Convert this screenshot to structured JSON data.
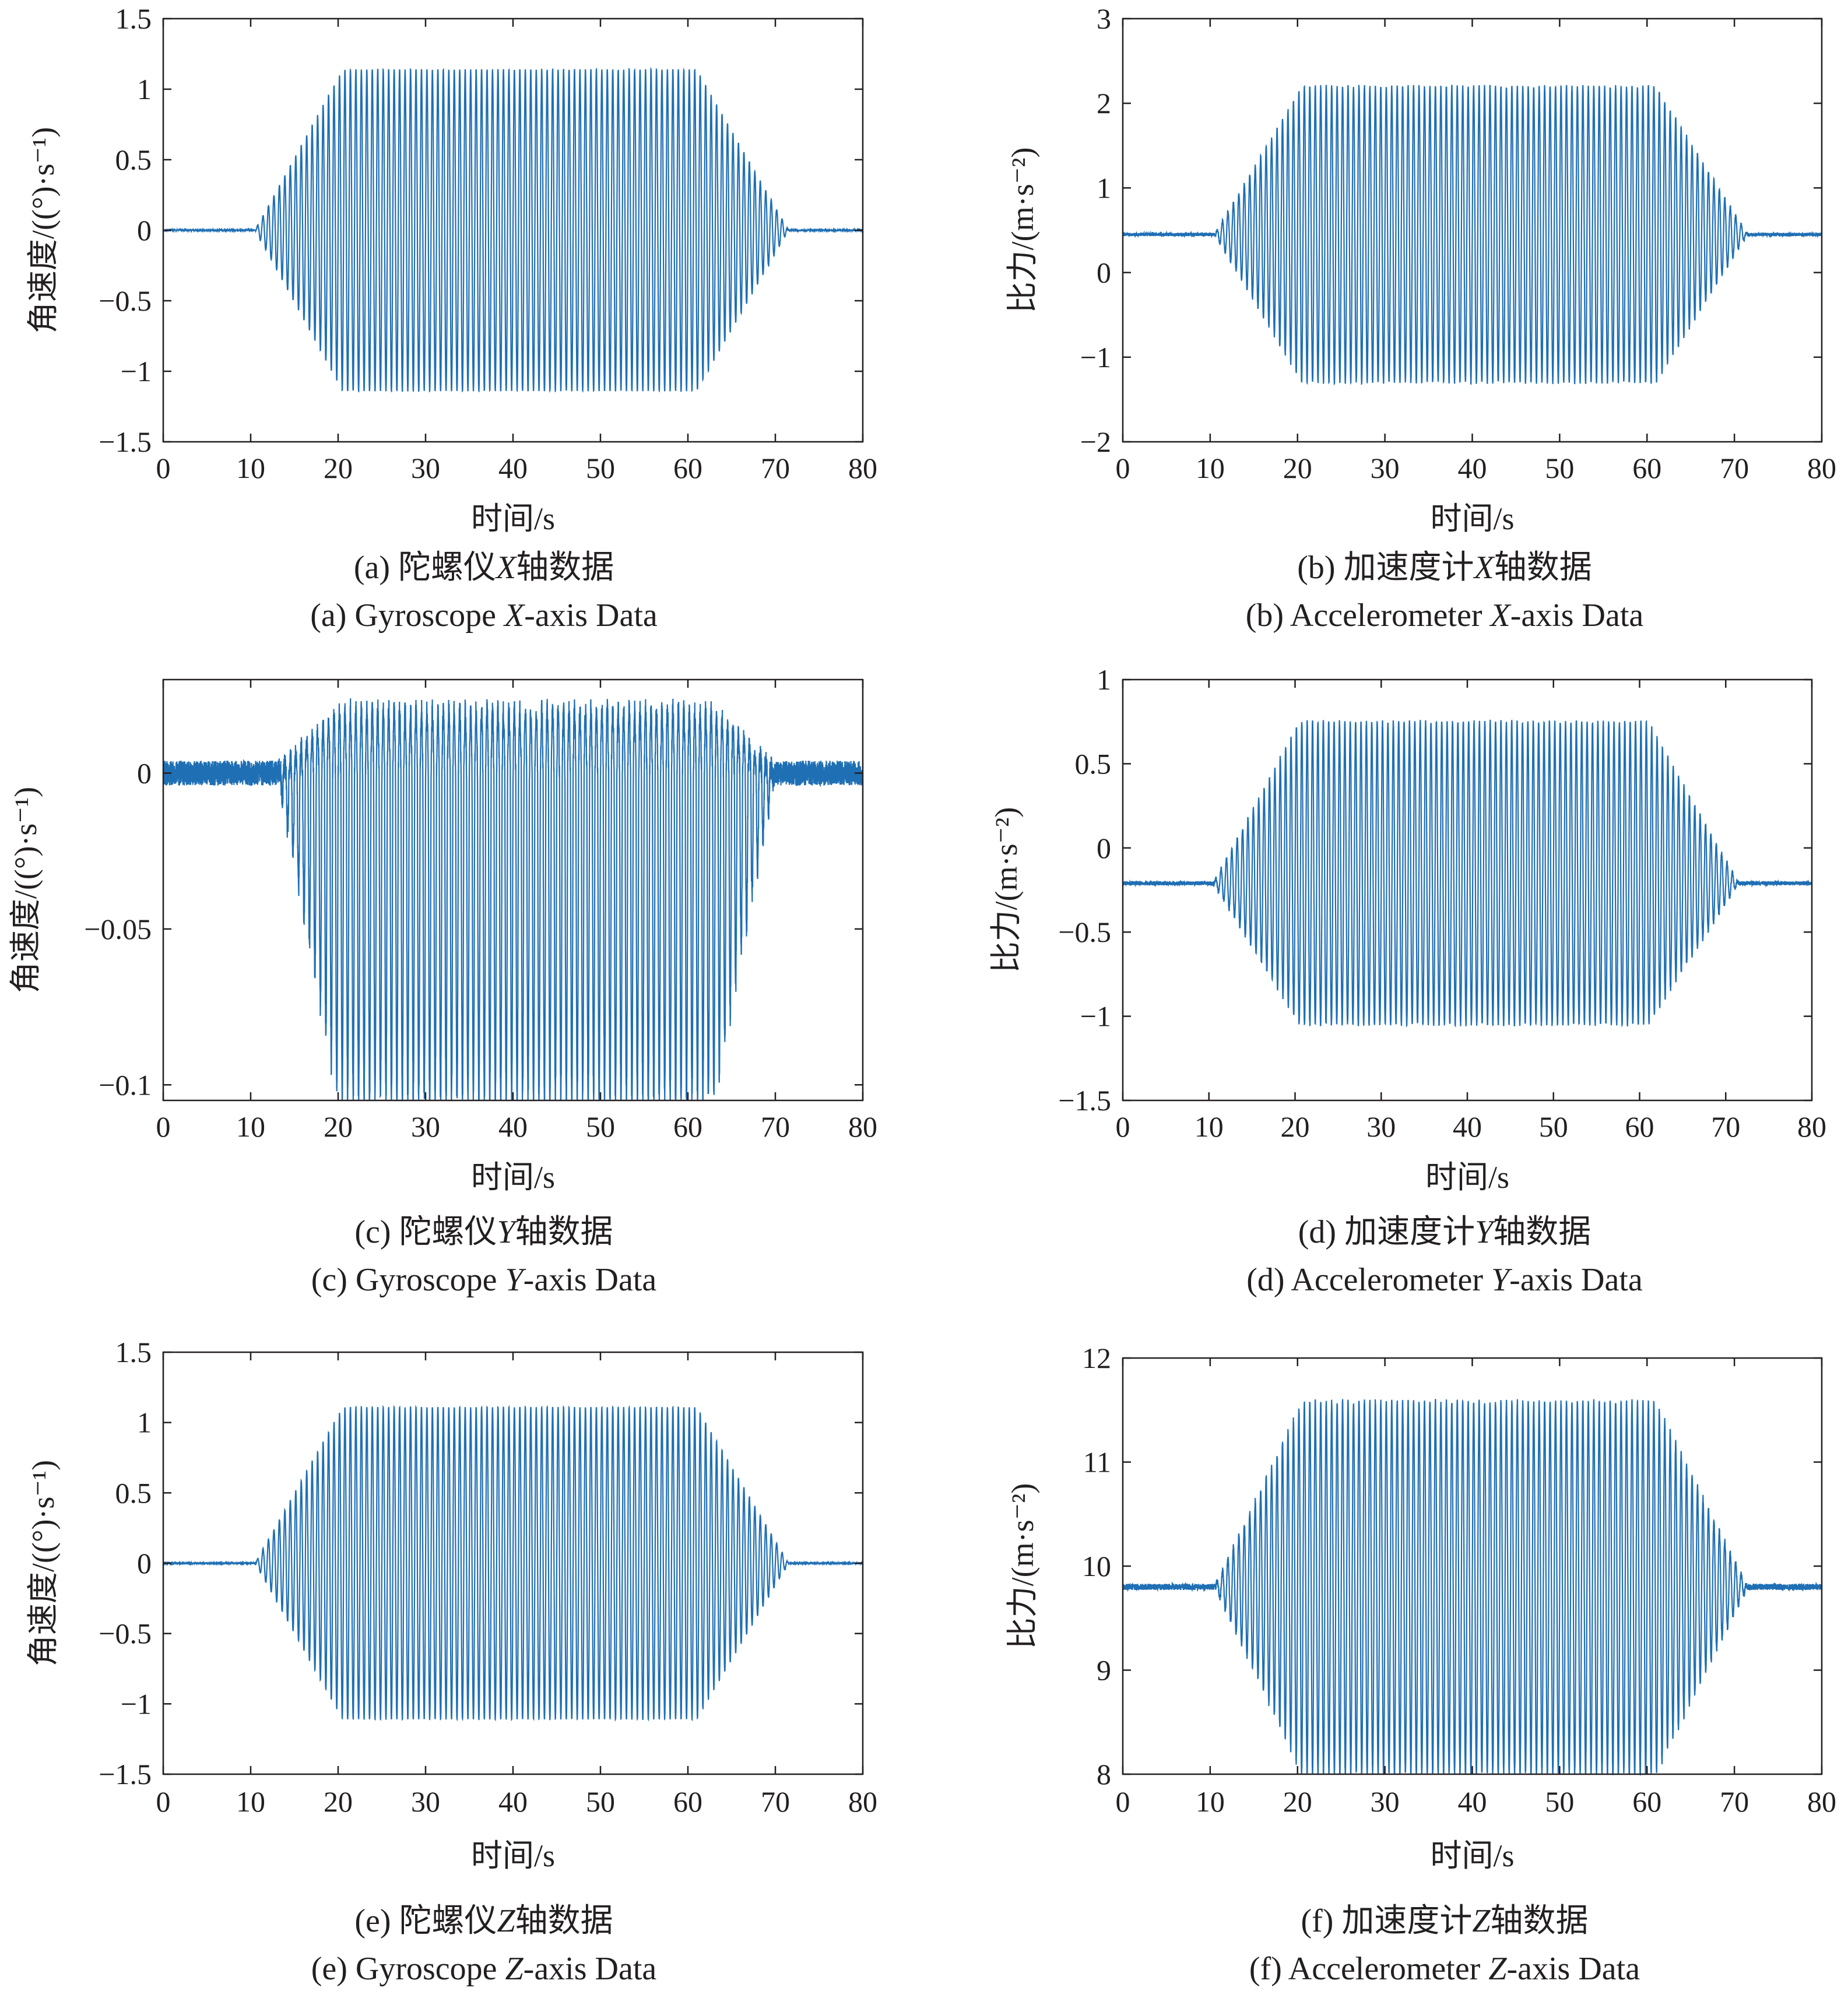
{
  "colors": {
    "series": "#1f6fb4",
    "axis": "#231f20"
  },
  "chart_data": [
    {
      "id": "a",
      "type": "line",
      "xlabel": "时间/s",
      "ylabel": "角速度/((°)·s⁻¹)",
      "xlim": [
        0,
        80
      ],
      "ylim": [
        -1.5,
        1.5
      ],
      "xticks": [
        "0",
        "10",
        "20",
        "30",
        "40",
        "50",
        "60",
        "70",
        "80"
      ],
      "yticks": [
        "1.5",
        "1",
        "0.5",
        "0",
        "−0.5",
        "−1",
        "−1.5"
      ],
      "ytick_values": [
        1.5,
        1,
        0.5,
        0,
        -0.5,
        -1,
        -1.5
      ],
      "signal": {
        "baseline": 0.0,
        "amp_max": 1.14,
        "amp_min": -1.14,
        "noise": 0.004,
        "ramp_up": [
          10.5,
          20.5
        ],
        "ramp_down": [
          61,
          71.5
        ],
        "cycles_per_s": 1.6
      },
      "caption_cn": {
        "prefix": "(a) 陀螺仪",
        "axis": "X",
        "suffix": "轴数据"
      },
      "caption_en": {
        "prefix": "(a) Gyroscope ",
        "axis": "X",
        "suffix": "-axis Data"
      }
    },
    {
      "id": "b",
      "type": "line",
      "xlabel": "时间/s",
      "ylabel": "比力/(m·s⁻²)",
      "xlim": [
        0,
        80
      ],
      "ylim": [
        -2,
        3
      ],
      "xticks": [
        "0",
        "10",
        "20",
        "30",
        "40",
        "50",
        "60",
        "70",
        "80"
      ],
      "yticks": [
        "3",
        "2",
        "1",
        "0",
        "−1",
        "−2"
      ],
      "ytick_values": [
        3,
        2,
        1,
        0,
        -1,
        -2
      ],
      "signal": {
        "baseline": 0.45,
        "amp_max": 2.2,
        "amp_min": -1.3,
        "noise": 0.02,
        "ramp_up": [
          10.5,
          20.5
        ],
        "ramp_down": [
          61,
          71.5
        ],
        "cycles_per_s": 1.6
      },
      "caption_cn": {
        "prefix": "(b) 加速度计",
        "axis": "X",
        "suffix": "轴数据"
      },
      "caption_en": {
        "prefix": "(b) Accelerometer ",
        "axis": "X",
        "suffix": "-axis  Data"
      }
    },
    {
      "id": "c",
      "type": "line",
      "xlabel": "时间/s",
      "ylabel": "角速度/((°)·s⁻¹)",
      "xlim": [
        0,
        80
      ],
      "ylim": [
        -0.105,
        0.03
      ],
      "xticks": [
        "0",
        "10",
        "20",
        "30",
        "40",
        "50",
        "60",
        "70",
        "80"
      ],
      "yticks": [
        "0",
        "−0.05",
        "−0.1"
      ],
      "ytick_values": [
        0,
        -0.05,
        -0.1
      ],
      "signal": {
        "baseline": 0.0,
        "amp_max": 0.02,
        "amp_min": -0.105,
        "noise": 0.004,
        "ramp_up": [
          13,
          20
        ],
        "ramp_down": [
          63,
          70
        ],
        "cycles_per_s": 1.6
      },
      "caption_cn": {
        "prefix": "(c) 陀螺仪",
        "axis": "Y",
        "suffix": "轴数据"
      },
      "caption_en": {
        "prefix": "(c) Gyroscope ",
        "axis": "Y",
        "suffix": "-axis Data"
      }
    },
    {
      "id": "d",
      "type": "line",
      "xlabel": "时间/s",
      "ylabel": "比力/(m·s⁻²)",
      "xlim": [
        0,
        80
      ],
      "ylim": [
        -1.5,
        1
      ],
      "xticks": [
        "0",
        "10",
        "20",
        "30",
        "40",
        "50",
        "60",
        "70",
        "80"
      ],
      "yticks": [
        "1",
        "0.5",
        "0",
        "−0.5",
        "−1",
        "−1.5"
      ],
      "ytick_values": [
        1,
        0.5,
        0,
        -0.5,
        -1,
        -1.5
      ],
      "signal": {
        "baseline": -0.21,
        "amp_max": 0.75,
        "amp_min": -1.05,
        "noise": 0.012,
        "ramp_up": [
          10.5,
          20.5
        ],
        "ramp_down": [
          61,
          71.5
        ],
        "cycles_per_s": 1.6
      },
      "caption_cn": {
        "prefix": "(d) 加速度计",
        "axis": "Y",
        "suffix": "轴数据"
      },
      "caption_en": {
        "prefix": "(d) Accelerometer ",
        "axis": "Y",
        "suffix": "-axis  Data"
      }
    },
    {
      "id": "e",
      "type": "line",
      "xlabel": "时间/s",
      "ylabel": "角速度/((°)·s⁻¹)",
      "xlim": [
        0,
        80
      ],
      "ylim": [
        -1.5,
        1.5
      ],
      "xticks": [
        "0",
        "10",
        "20",
        "30",
        "40",
        "50",
        "60",
        "70",
        "80"
      ],
      "yticks": [
        "1.5",
        "1",
        "0.5",
        "0",
        "−0.5",
        "−1",
        "−1.5"
      ],
      "ytick_values": [
        1.5,
        1,
        0.5,
        0,
        -0.5,
        -1,
        -1.5
      ],
      "signal": {
        "baseline": 0.0,
        "amp_max": 1.11,
        "amp_min": -1.11,
        "noise": 0.003,
        "ramp_up": [
          10.5,
          20.5
        ],
        "ramp_down": [
          61,
          71.5
        ],
        "cycles_per_s": 1.6
      },
      "caption_cn": {
        "prefix": "(e) 陀螺仪",
        "axis": "Z",
        "suffix": "轴数据"
      },
      "caption_en": {
        "prefix": "(e) Gyroscope ",
        "axis": "Z",
        "suffix": "-axis Data"
      }
    },
    {
      "id": "f",
      "type": "line",
      "xlabel": "时间/s",
      "ylabel": "比力/(m·s⁻²)",
      "xlim": [
        0,
        80
      ],
      "ylim": [
        8,
        12
      ],
      "xticks": [
        "0",
        "10",
        "20",
        "30",
        "40",
        "50",
        "60",
        "70",
        "80"
      ],
      "yticks": [
        "12",
        "11",
        "10",
        "9",
        "8"
      ],
      "ytick_values": [
        12,
        11,
        10,
        9,
        8
      ],
      "signal": {
        "baseline": 9.8,
        "amp_max": 11.58,
        "amp_min": 8.0,
        "noise": 0.03,
        "ramp_up": [
          10.5,
          20.5
        ],
        "ramp_down": [
          61,
          71.5
        ],
        "cycles_per_s": 1.6
      },
      "caption_cn": {
        "prefix": "(f) 加速度计",
        "axis": "Z",
        "suffix": "轴数据"
      },
      "caption_en": {
        "prefix": "(f) Accelerometer ",
        "axis": "Z",
        "suffix": "-axis  Data"
      }
    }
  ]
}
